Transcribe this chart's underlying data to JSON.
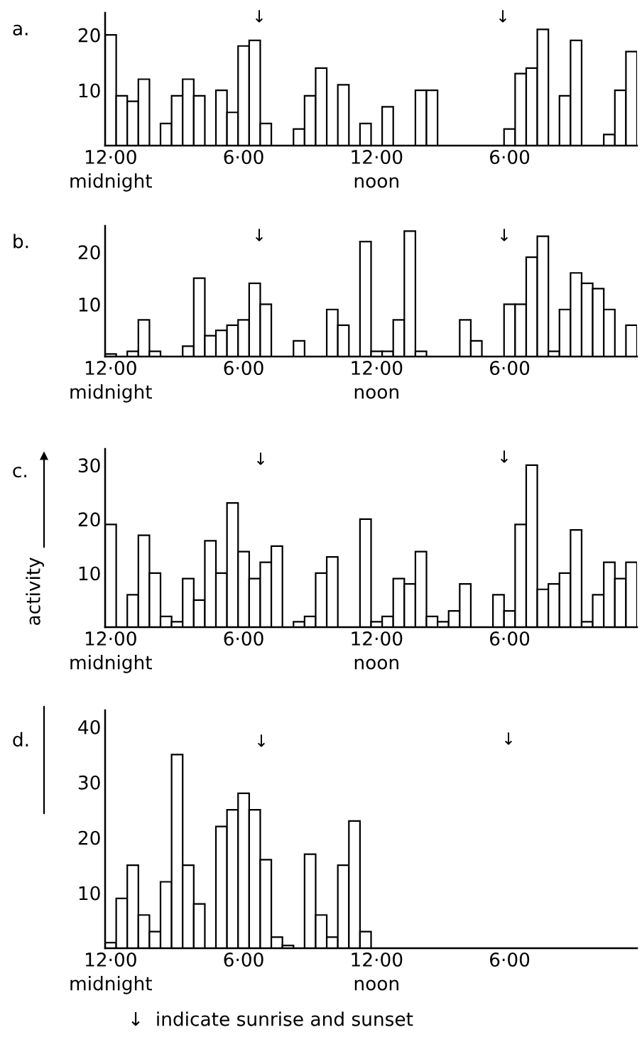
{
  "chart_data": [
    {
      "type": "bar",
      "title": "a.",
      "categories": [
        "12·00\nmidnight",
        null,
        null,
        null,
        null,
        null,
        null,
        null,
        null,
        null,
        null,
        null,
        "6·00",
        null,
        null,
        null,
        null,
        null,
        null,
        null,
        null,
        null,
        null,
        null,
        "12·00\nnoon",
        null,
        null,
        null,
        null,
        null,
        null,
        null,
        null,
        null,
        null,
        null,
        "6·00",
        null,
        null,
        null,
        null,
        null,
        null,
        null,
        null,
        null,
        null,
        null
      ],
      "values": [
        20,
        9,
        8,
        12,
        0,
        4,
        9,
        12,
        9,
        0,
        10,
        6,
        18,
        19,
        4,
        0,
        0,
        3,
        9,
        14,
        0,
        11,
        0,
        4,
        0,
        7,
        0,
        0,
        10,
        10,
        0,
        0,
        0,
        0,
        0,
        0,
        3,
        13,
        14,
        21,
        0,
        9,
        19,
        0,
        0,
        2,
        10,
        17
      ],
      "color": "#ffffff",
      "ylim": [
        0,
        24
      ],
      "yticks": [
        10,
        20
      ],
      "annotations": [
        "↓",
        "↓"
      ]
    },
    {
      "type": "bar",
      "title": "b.",
      "categories": [
        "12·00\nmidnight",
        null,
        null,
        null,
        null,
        null,
        null,
        null,
        null,
        null,
        null,
        null,
        "6·00",
        null,
        null,
        null,
        null,
        null,
        null,
        null,
        null,
        null,
        null,
        null,
        "12·00\nnoon",
        null,
        null,
        null,
        null,
        null,
        null,
        null,
        null,
        null,
        null,
        null,
        "6·00",
        null,
        null,
        null,
        null,
        null,
        null,
        null,
        null,
        null,
        null,
        null
      ],
      "values": [
        0.5,
        0,
        1,
        7,
        1,
        0,
        0,
        2,
        15,
        4,
        5,
        6,
        7,
        14,
        10,
        0,
        0,
        3,
        0,
        0,
        9,
        6,
        0,
        22,
        1,
        1,
        7,
        24,
        1,
        0,
        0,
        0,
        7,
        3,
        0,
        0,
        10,
        10,
        19,
        23,
        1,
        9,
        16,
        14,
        13,
        9,
        0,
        6
      ],
      "color": "#ffffff",
      "ylim": [
        0,
        25
      ],
      "yticks": [
        10,
        20
      ],
      "annotations": [
        "↓",
        "↓"
      ]
    },
    {
      "type": "bar",
      "title": "c.",
      "ylabel": "activity",
      "categories": [
        "12·00\nmidnight",
        null,
        null,
        null,
        null,
        null,
        null,
        null,
        null,
        null,
        null,
        null,
        "6·00",
        null,
        null,
        null,
        null,
        null,
        null,
        null,
        null,
        null,
        null,
        null,
        "12·00\nnoon",
        null,
        null,
        null,
        null,
        null,
        null,
        null,
        null,
        null,
        null,
        null,
        "6·00",
        null,
        null,
        null,
        null,
        null,
        null,
        null,
        null,
        null,
        null,
        null
      ],
      "values": [
        19,
        0,
        6,
        17,
        10,
        2,
        1,
        9,
        5,
        16,
        10,
        23,
        14,
        9,
        12,
        15,
        0,
        1,
        2,
        10,
        13,
        0,
        0,
        20,
        1,
        2,
        9,
        8,
        14,
        2,
        1,
        3,
        8,
        0,
        0,
        6,
        3,
        19,
        30,
        7,
        8,
        10,
        18,
        1,
        6,
        12,
        9,
        12
      ],
      "color": "#ffffff",
      "ylim": [
        0,
        33
      ],
      "yticks": [
        10,
        20,
        30
      ],
      "annotations": [
        "↓",
        "↓"
      ]
    },
    {
      "type": "bar",
      "title": "d.",
      "categories": [
        "12·00\nmidnight",
        null,
        null,
        null,
        null,
        null,
        null,
        null,
        null,
        null,
        null,
        null,
        "6·00",
        null,
        null,
        null,
        null,
        null,
        null,
        null,
        null,
        null,
        null,
        null,
        "12·00\nnoon",
        null,
        null,
        null,
        null,
        null,
        null,
        null,
        null,
        null,
        null,
        null,
        "6·00",
        null,
        null,
        null,
        null,
        null,
        null,
        null,
        null,
        null,
        null,
        null
      ],
      "values": [
        1,
        9,
        15,
        6,
        3,
        12,
        35,
        15,
        8,
        0,
        22,
        25,
        28,
        25,
        16,
        2,
        0.5,
        0,
        17,
        6,
        2,
        15,
        23,
        3,
        0,
        0,
        0,
        0,
        0,
        0,
        0,
        0,
        0,
        0,
        0,
        0,
        0,
        0,
        0,
        0,
        0,
        0,
        0,
        0,
        0,
        0,
        0,
        0
      ],
      "color": "#ffffff",
      "ylim": [
        0,
        43
      ],
      "yticks": [
        10,
        20,
        30,
        40
      ],
      "annotations": [
        "↓",
        "↓",
        "↓  indicate sunrise and sunset"
      ]
    }
  ]
}
